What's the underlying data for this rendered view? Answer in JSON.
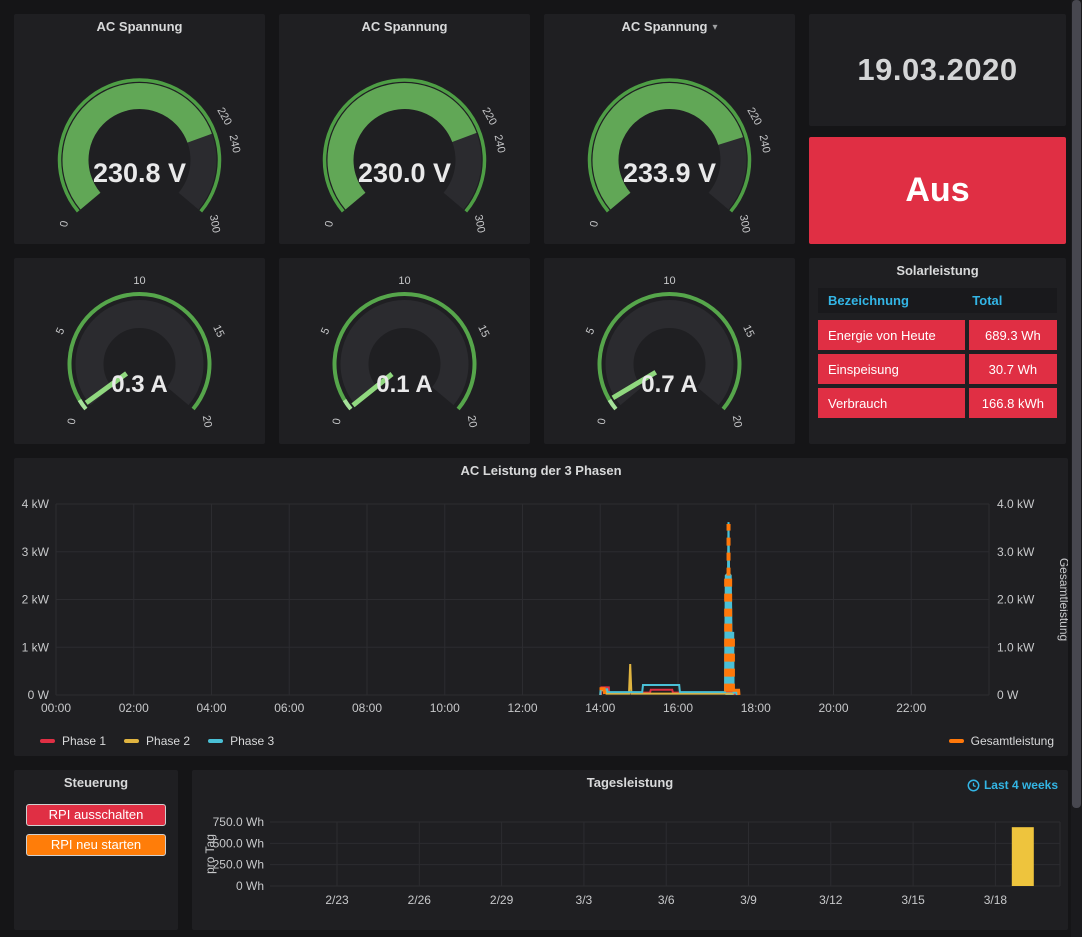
{
  "page": {
    "background": "#151517",
    "panel_background": "#1f1f22"
  },
  "colors": {
    "green_fill": "#61a756",
    "green_ring": "#4e9e45",
    "green_light": "#a5e09a",
    "needle": "#90d87f",
    "gauge_track": "#2b2b2f",
    "tick_text": "#c7c8ca",
    "value_text": "#e9e9ea",
    "red": "#e02f44",
    "orange": "#ff780a",
    "yellow": "#e0b440",
    "cyan": "#4ac0d6",
    "blue_link": "#33b5e5",
    "grid": "#2c2c30",
    "axis_text": "#c7c8ca",
    "bar_yellow": "#eec43d"
  },
  "voltage_gauges": [
    {
      "title": "AC Spannung",
      "has_dropdown": false,
      "value": 230.8,
      "value_text": "230.8 V",
      "min": 0,
      "max": 300,
      "tick_labels": [
        0,
        220,
        240,
        300
      ]
    },
    {
      "title": "AC Spannung",
      "has_dropdown": false,
      "value": 230.0,
      "value_text": "230.0 V",
      "min": 0,
      "max": 300,
      "tick_labels": [
        0,
        220,
        240,
        300
      ]
    },
    {
      "title": "AC Spannung",
      "has_dropdown": true,
      "value": 233.9,
      "value_text": "233.9 V",
      "min": 0,
      "max": 300,
      "tick_labels": [
        0,
        220,
        240,
        300
      ]
    }
  ],
  "current_gauges": [
    {
      "value": 0.3,
      "value_text": "0.3 A",
      "min": 0,
      "max": 20,
      "tick_labels": [
        0,
        5,
        10,
        15,
        20
      ]
    },
    {
      "value": 0.1,
      "value_text": "0.1 A",
      "min": 0,
      "max": 20,
      "tick_labels": [
        0,
        5,
        10,
        15,
        20
      ]
    },
    {
      "value": 0.7,
      "value_text": "0.7 A",
      "min": 0,
      "max": 20,
      "tick_labels": [
        0,
        5,
        10,
        15,
        20
      ]
    }
  ],
  "date_display": {
    "value": "19.03.2020"
  },
  "switch_panel": {
    "label": "Aus",
    "background": "#e02f44"
  },
  "solar_table": {
    "title": "Solarleistung",
    "header": {
      "col1": "Bezeichnung",
      "col2": "Total",
      "color": "#33b5e5"
    },
    "rows": [
      {
        "label": "Energie von Heute",
        "total": "689.3 Wh"
      },
      {
        "label": "Einspeisung",
        "total": "30.7 Wh"
      },
      {
        "label": "Verbrauch",
        "total": "166.8 kWh"
      }
    ],
    "cell_background": "#e02f44"
  },
  "steuerung": {
    "title": "Steuerung",
    "buttons": [
      {
        "label": "RPI ausschalten",
        "background": "#e02f44"
      },
      {
        "label": "RPI neu starten",
        "background": "#ff7d09"
      }
    ]
  },
  "chart_data": [
    {
      "type": "line",
      "title": "AC Leistung der 3 Phasen",
      "right_axis_label": "Gesamtleistung",
      "x_ticks": [
        "00:00",
        "02:00",
        "04:00",
        "06:00",
        "08:00",
        "10:00",
        "12:00",
        "14:00",
        "16:00",
        "18:00",
        "20:00",
        "22:00"
      ],
      "y_ticks_left": [
        "4 kW",
        "3 kW",
        "2 kW",
        "1 kW",
        "0 W"
      ],
      "y_ticks_right": [
        "4.0 kW",
        "3.0 kW",
        "2.0 kW",
        "1.0 kW",
        "0 W"
      ],
      "xlim_hours": [
        0,
        24
      ],
      "ylim_kw": [
        0,
        4
      ],
      "grid": true,
      "series": [
        {
          "name": "Phase 1",
          "color": "#e02f44",
          "legend": "left",
          "points_h_kw": [
            [
              14.02,
              0
            ],
            [
              14.03,
              0.16
            ],
            [
              14.22,
              0.16
            ],
            [
              14.23,
              0.05
            ],
            [
              15.28,
              0.05
            ],
            [
              15.3,
              0.11
            ],
            [
              15.85,
              0.11
            ],
            [
              15.87,
              0.05
            ],
            [
              17.2,
              0.05
            ],
            [
              17.22,
              0.08
            ],
            [
              17.44,
              0.08
            ],
            [
              17.46,
              0
            ]
          ]
        },
        {
          "name": "Phase 2",
          "color": "#e0b440",
          "legend": "left",
          "points_h_kw": [
            [
              14.0,
              0
            ],
            [
              14.01,
              0.1
            ],
            [
              14.15,
              0.1
            ],
            [
              14.16,
              0.03
            ],
            [
              14.74,
              0.03
            ],
            [
              14.77,
              0.65
            ],
            [
              14.8,
              0.03
            ],
            [
              17.42,
              0.03
            ],
            [
              17.44,
              0.06
            ],
            [
              17.52,
              0.06
            ],
            [
              17.53,
              0
            ]
          ]
        },
        {
          "name": "Phase 3",
          "color": "#4ac0d6",
          "legend": "left",
          "points_h_kw": [
            [
              14.0,
              0
            ],
            [
              14.01,
              0.12
            ],
            [
              14.18,
              0.12
            ],
            [
              14.19,
              0.06
            ],
            [
              15.08,
              0.06
            ],
            [
              15.1,
              0.21
            ],
            [
              16.03,
              0.21
            ],
            [
              16.05,
              0.06
            ],
            [
              17.21,
              0.06
            ],
            [
              17.23,
              2.5
            ],
            [
              17.285,
              2.55
            ],
            [
              17.3,
              3.62
            ],
            [
              17.315,
              2.55
            ],
            [
              17.355,
              2.5
            ],
            [
              17.375,
              1.3
            ],
            [
              17.42,
              1.3
            ],
            [
              17.43,
              0.05
            ],
            [
              17.5,
              0.05
            ],
            [
              17.51,
              0
            ]
          ]
        },
        {
          "name": "Gesamtleistung",
          "color": "#ff780a",
          "legend": "right",
          "dashed": true,
          "points_h_kw": [
            [
              13.98,
              0.13
            ],
            [
              14.1,
              0.13
            ],
            [
              17.42,
              0.1
            ],
            [
              17.56,
              0.1
            ],
            [
              17.57,
              0
            ]
          ]
        }
      ],
      "spike_envelope_h_kw": [
        [
          17.22,
          0
        ],
        [
          17.235,
          2.5
        ],
        [
          17.285,
          2.55
        ],
        [
          17.3,
          3.62
        ],
        [
          17.315,
          2.55
        ],
        [
          17.355,
          2.5
        ],
        [
          17.375,
          1.3
        ],
        [
          17.42,
          1.3
        ],
        [
          17.43,
          0
        ]
      ],
      "spike_orange_dashes": [
        {
          "h": 17.29,
          "from_kw": 0.07,
          "to_kw": 2.55,
          "width": 8
        },
        {
          "h": 17.3,
          "from_kw": 2.5,
          "to_kw": 3.58,
          "width": 4
        },
        {
          "h": 17.4,
          "from_kw": 0.07,
          "to_kw": 1.28,
          "width": 5
        }
      ],
      "gesamt_low_segments": [
        [
          [
            13.98,
            0.13
          ],
          [
            14.1,
            0.13
          ],
          [
            14.11,
            0.02
          ]
        ],
        [
          [
            17.42,
            0.1
          ],
          [
            17.56,
            0.1
          ],
          [
            17.57,
            0
          ]
        ]
      ]
    },
    {
      "type": "bar",
      "title": "Tagesleistung",
      "time_range_label": "Last 4 weeks",
      "ylabel": "pro Tag",
      "y_ticks": [
        "750.0 Wh",
        "500.0 Wh",
        "250.0 Wh",
        "0 Wh"
      ],
      "x_ticks": [
        "2/23",
        "2/26",
        "2/29",
        "3/3",
        "3/6",
        "3/9",
        "3/12",
        "3/15",
        "3/18"
      ],
      "ylim_wh": [
        0,
        750
      ],
      "grid": true,
      "bars": [
        {
          "x_label": "3/19",
          "value_wh": 689.3
        }
      ],
      "bar_color": "#eec43d"
    }
  ]
}
